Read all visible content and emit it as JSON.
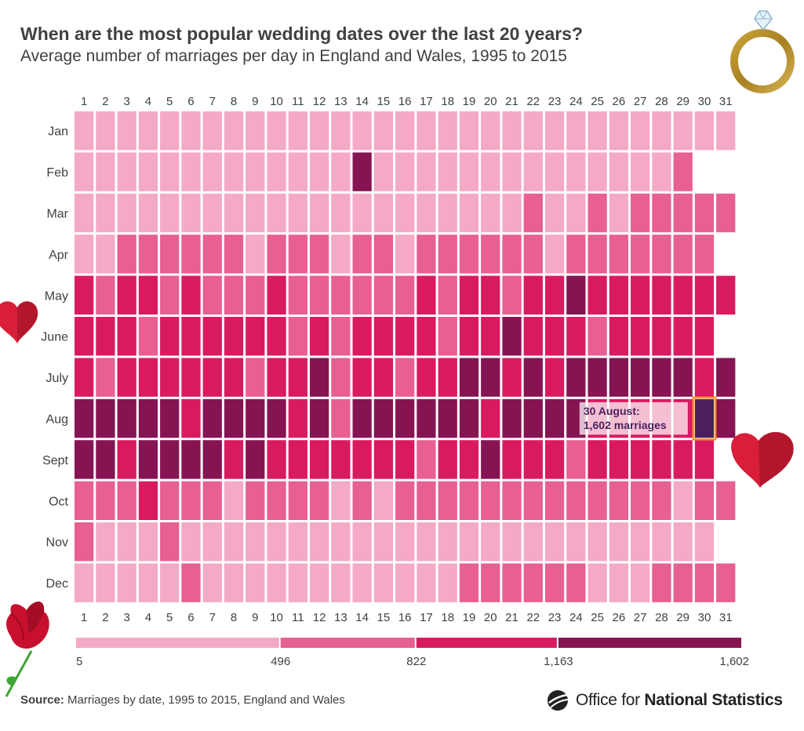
{
  "header": {
    "title": "When are the most popular wedding dates over the last 20 years?",
    "subtitle": "Average number of marriages per day in England and Wales, 1995 to 2015"
  },
  "chart_data": {
    "type": "heatmap",
    "title": "When are the most popular wedding dates over the last 20 years?",
    "subtitle": "Average number of marriages per day in England and Wales, 1995 to 2015",
    "x": [
      "1",
      "2",
      "3",
      "4",
      "5",
      "6",
      "7",
      "8",
      "9",
      "10",
      "11",
      "12",
      "13",
      "14",
      "15",
      "16",
      "17",
      "18",
      "19",
      "20",
      "21",
      "22",
      "23",
      "24",
      "25",
      "26",
      "27",
      "28",
      "29",
      "30",
      "31"
    ],
    "y": [
      "Jan",
      "Feb",
      "Mar",
      "Apr",
      "May",
      "June",
      "July",
      "Aug",
      "Sept",
      "Oct",
      "Nov",
      "Dec"
    ],
    "days_in_month": [
      31,
      29,
      31,
      30,
      31,
      30,
      31,
      31,
      30,
      31,
      30,
      31
    ],
    "value_bands": [
      {
        "from": 5,
        "to": 496,
        "color": "#f4a9c6"
      },
      {
        "from": 496,
        "to": 822,
        "color": "#e85f92"
      },
      {
        "from": 822,
        "to": 1163,
        "color": "#d81b60"
      },
      {
        "from": 1163,
        "to": 1602,
        "color": "#861452"
      }
    ],
    "band_matrix": [
      [
        0,
        0,
        0,
        0,
        0,
        0,
        0,
        0,
        0,
        0,
        0,
        0,
        0,
        0,
        0,
        0,
        0,
        0,
        0,
        0,
        0,
        0,
        0,
        0,
        0,
        0,
        0,
        0,
        0,
        0,
        0
      ],
      [
        0,
        0,
        0,
        0,
        0,
        0,
        0,
        0,
        0,
        0,
        0,
        0,
        0,
        3,
        0,
        0,
        0,
        0,
        0,
        0,
        0,
        0,
        0,
        0,
        0,
        0,
        0,
        0,
        1
      ],
      [
        0,
        0,
        0,
        0,
        0,
        0,
        0,
        0,
        0,
        0,
        0,
        0,
        0,
        0,
        0,
        0,
        0,
        0,
        0,
        0,
        0,
        1,
        0,
        0,
        1,
        0,
        1,
        1,
        1,
        1,
        1
      ],
      [
        0,
        0,
        1,
        1,
        1,
        1,
        1,
        1,
        0,
        1,
        1,
        1,
        0,
        1,
        1,
        0,
        1,
        1,
        1,
        1,
        1,
        1,
        0,
        1,
        1,
        1,
        1,
        1,
        1,
        1
      ],
      [
        2,
        1,
        2,
        2,
        1,
        2,
        1,
        1,
        1,
        2,
        1,
        1,
        1,
        1,
        1,
        1,
        2,
        1,
        2,
        2,
        1,
        2,
        2,
        3,
        2,
        2,
        2,
        2,
        2,
        2,
        2
      ],
      [
        2,
        2,
        2,
        1,
        2,
        2,
        2,
        2,
        2,
        2,
        1,
        2,
        1,
        2,
        2,
        2,
        2,
        1,
        2,
        2,
        3,
        2,
        2,
        2,
        1,
        2,
        2,
        2,
        2,
        2
      ],
      [
        2,
        1,
        2,
        2,
        2,
        2,
        2,
        2,
        1,
        2,
        2,
        3,
        1,
        2,
        2,
        1,
        2,
        2,
        3,
        3,
        2,
        3,
        2,
        3,
        3,
        3,
        3,
        3,
        3,
        2,
        3
      ],
      [
        3,
        3,
        3,
        3,
        3,
        2,
        3,
        3,
        3,
        3,
        2,
        3,
        1,
        3,
        3,
        3,
        3,
        3,
        3,
        2,
        3,
        3,
        3,
        3,
        2,
        2,
        2,
        2,
        2,
        3,
        3
      ],
      [
        3,
        3,
        2,
        3,
        3,
        3,
        3,
        2,
        3,
        2,
        2,
        2,
        2,
        2,
        2,
        2,
        1,
        2,
        2,
        3,
        2,
        2,
        2,
        1,
        2,
        2,
        2,
        2,
        2,
        2
      ],
      [
        1,
        1,
        1,
        2,
        1,
        1,
        1,
        0,
        1,
        1,
        1,
        1,
        0,
        1,
        0,
        1,
        1,
        1,
        1,
        1,
        1,
        1,
        1,
        1,
        1,
        1,
        1,
        1,
        0,
        1,
        1
      ],
      [
        1,
        0,
        0,
        0,
        1,
        0,
        0,
        0,
        0,
        0,
        0,
        0,
        0,
        0,
        0,
        0,
        0,
        0,
        0,
        0,
        0,
        0,
        0,
        0,
        0,
        0,
        0,
        0,
        0,
        0
      ],
      [
        0,
        0,
        0,
        0,
        0,
        1,
        0,
        0,
        0,
        0,
        0,
        0,
        0,
        0,
        0,
        0,
        0,
        0,
        1,
        1,
        1,
        1,
        1,
        1,
        0,
        0,
        0,
        1,
        1,
        1,
        1
      ]
    ],
    "highlight": {
      "month": "Aug",
      "day": 30,
      "value": 1602,
      "color": "#4b1f5c",
      "outline": "#f7941d",
      "label_line1": "30 August:",
      "label_line2": "1,602 marriages"
    },
    "legend": {
      "ticks": [
        "5",
        "496",
        "822",
        "1,163",
        "1,602"
      ]
    }
  },
  "footer": {
    "source_label": "Source:",
    "source_text": " Marriages by date, 1995 to 2015, England and Wales",
    "org_light": "Office for ",
    "org_bold": "National Statistics"
  }
}
